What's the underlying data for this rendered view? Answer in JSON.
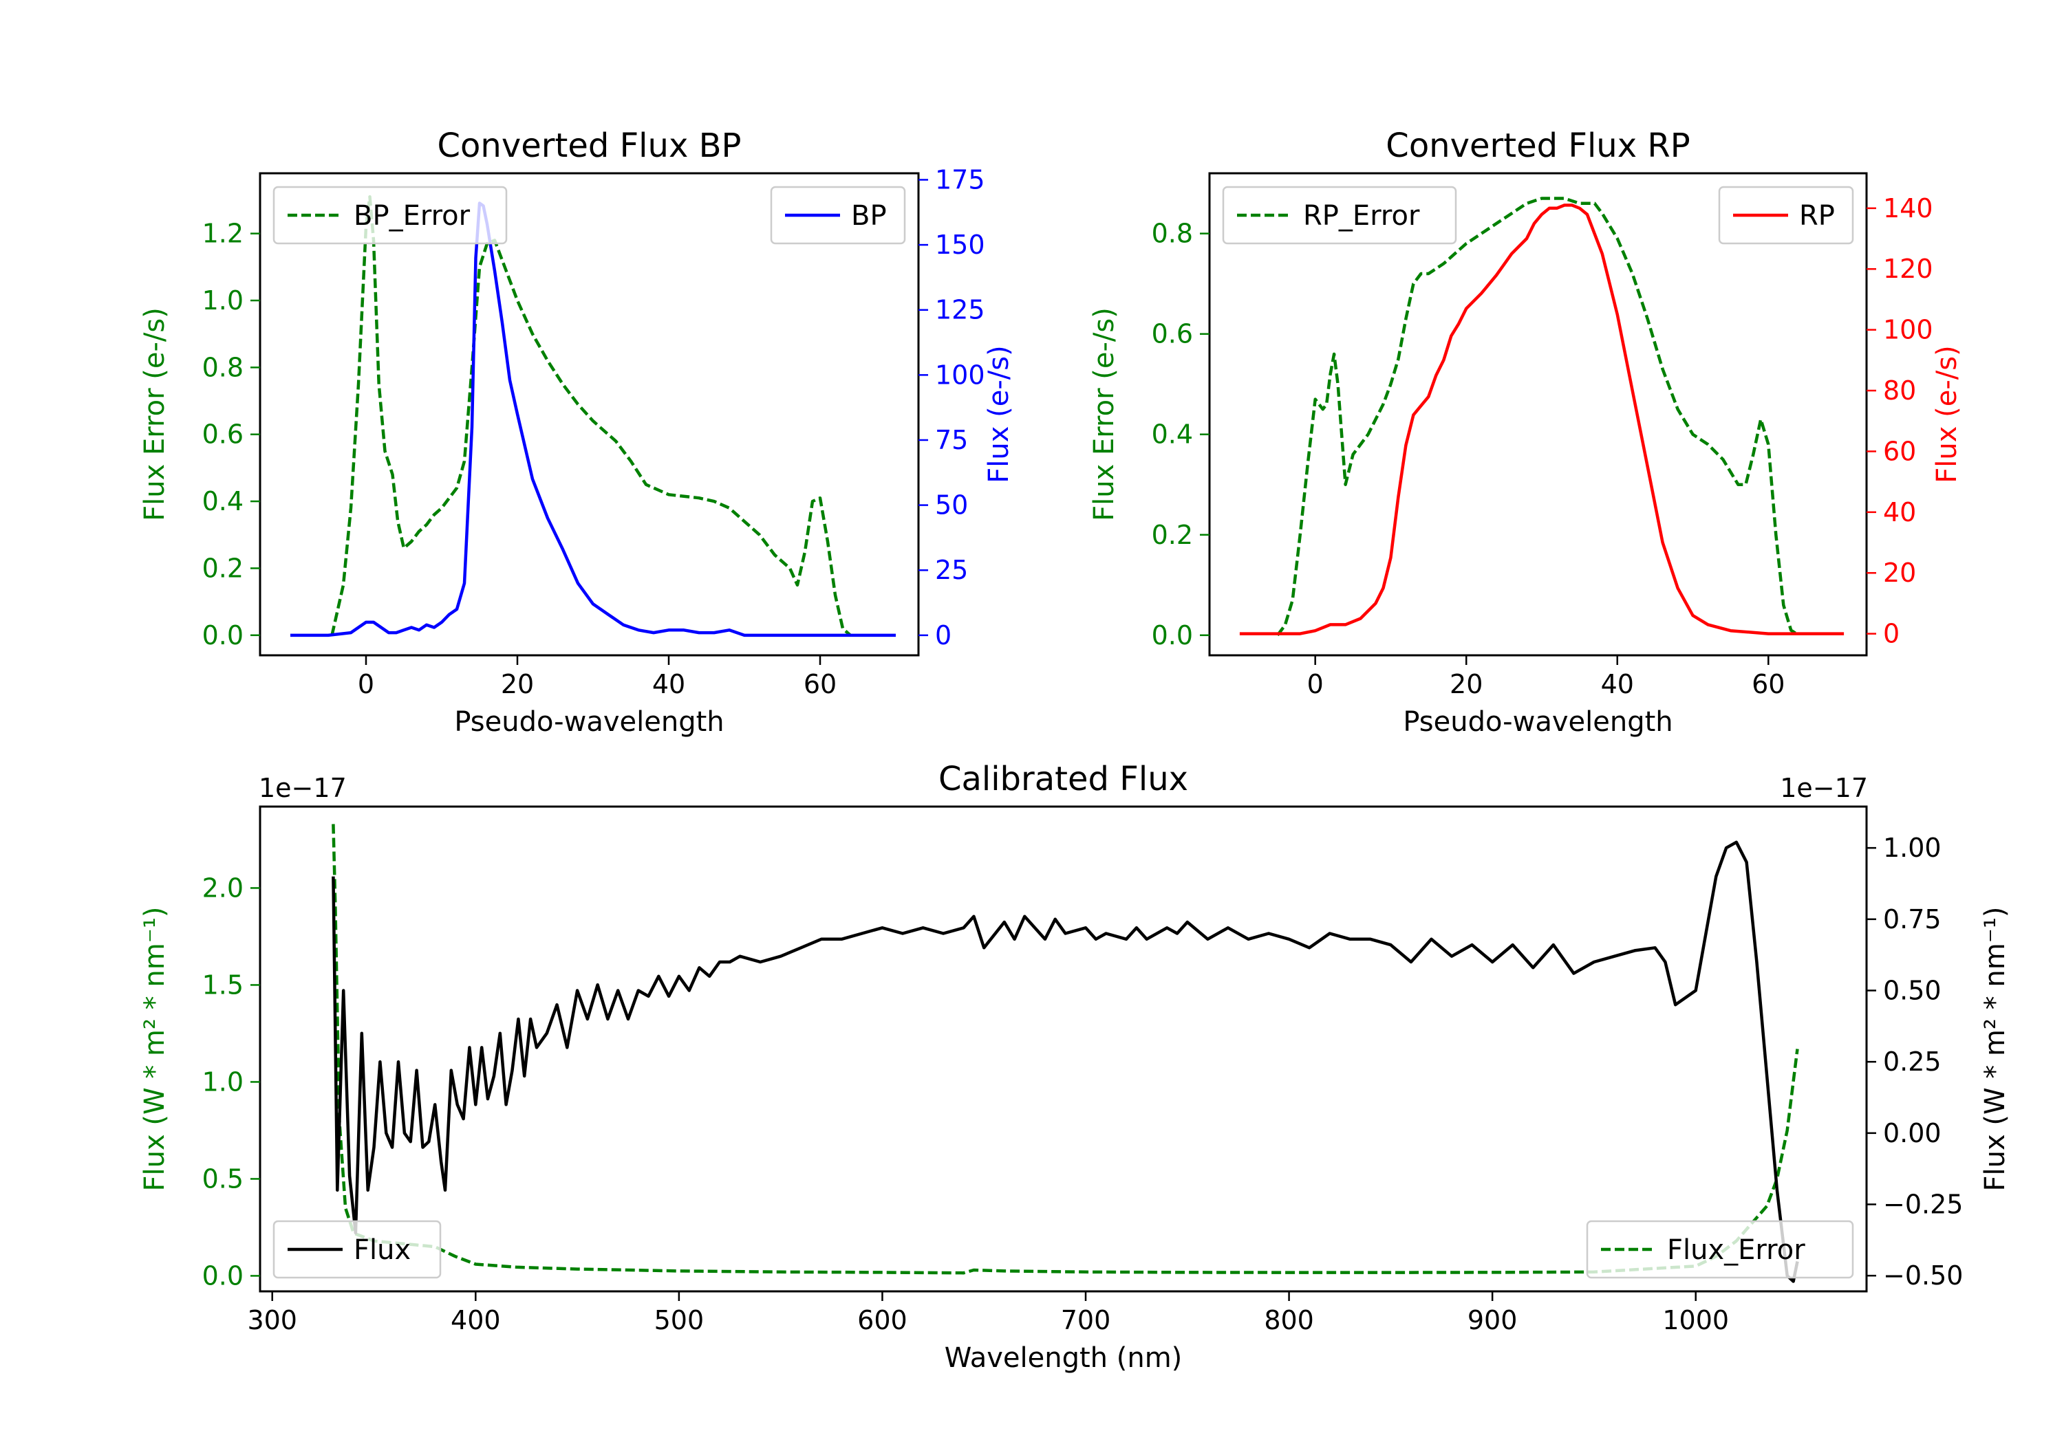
{
  "colors": {
    "green": "#008000",
    "blue": "#0000ff",
    "red": "#ff0000",
    "black": "#000000"
  },
  "chart_data": [
    {
      "type": "line",
      "id": "bp",
      "title": "Converted Flux BP",
      "xlabel": "Pseudo-wavelength",
      "ylabel_left": "Flux Error (e-/s)",
      "ylabel_right": "Flux (e-/s)",
      "xlim": [
        -14,
        73
      ],
      "ylim_left": [
        -0.06,
        1.38
      ],
      "ylim_right": [
        -7.7,
        177.5
      ],
      "xticks": [
        0,
        20,
        40,
        60
      ],
      "yticks_left": [
        0.0,
        0.2,
        0.4,
        0.6,
        0.8,
        1.0,
        1.2
      ],
      "yticks_right": [
        0,
        25,
        50,
        75,
        100,
        125,
        150,
        175
      ],
      "legend": [
        {
          "label": "BP_Error",
          "position": "top-left"
        },
        {
          "label": "BP",
          "position": "top-right"
        }
      ],
      "series": [
        {
          "name": "BP_Error",
          "axis": "left",
          "color": "green",
          "dash": true,
          "x": [
            -4.5,
            -3,
            -2,
            -1,
            0,
            0.5,
            1,
            1.7,
            2.5,
            3.5,
            4.2,
            5,
            6,
            7,
            8,
            9,
            10,
            11,
            12,
            13,
            14,
            15,
            16,
            17,
            18,
            19,
            20,
            22,
            24,
            26,
            28,
            30,
            31,
            33,
            35,
            37,
            40,
            44,
            46,
            48,
            50,
            52,
            54,
            56,
            57,
            58,
            59,
            60,
            61,
            62,
            63,
            64
          ],
          "y": [
            0.0,
            0.15,
            0.38,
            0.75,
            1.22,
            1.31,
            1.18,
            0.75,
            0.55,
            0.48,
            0.34,
            0.26,
            0.28,
            0.31,
            0.33,
            0.36,
            0.38,
            0.41,
            0.44,
            0.52,
            0.8,
            1.1,
            1.17,
            1.18,
            1.12,
            1.06,
            1.0,
            0.9,
            0.82,
            0.75,
            0.69,
            0.64,
            0.62,
            0.58,
            0.52,
            0.45,
            0.42,
            0.41,
            0.4,
            0.38,
            0.34,
            0.3,
            0.24,
            0.2,
            0.15,
            0.25,
            0.4,
            0.41,
            0.28,
            0.12,
            0.02,
            0.0
          ]
        },
        {
          "name": "BP",
          "axis": "right",
          "color": "blue",
          "dash": false,
          "x": [
            -10,
            -5,
            -2,
            0,
            1,
            2,
            3,
            4,
            5,
            6,
            7,
            8,
            9,
            10,
            11,
            12,
            13,
            14,
            14.5,
            15,
            15.5,
            16,
            17,
            18,
            19,
            20,
            22,
            24,
            26,
            28,
            30,
            32,
            34,
            36,
            38,
            40,
            42,
            44,
            46,
            48,
            50,
            55,
            60,
            65,
            70
          ],
          "y": [
            0,
            0,
            1,
            5,
            5,
            3,
            1,
            1,
            2,
            3,
            2,
            4,
            3,
            5,
            8,
            10,
            20,
            80,
            145,
            166,
            165,
            158,
            140,
            120,
            98,
            85,
            60,
            45,
            33,
            20,
            12,
            8,
            4,
            2,
            1,
            2,
            2,
            1,
            1,
            2,
            0,
            0,
            0,
            0,
            0
          ]
        }
      ]
    },
    {
      "type": "line",
      "id": "rp",
      "title": "Converted Flux RP",
      "xlabel": "Pseudo-wavelength",
      "ylabel_left": "Flux Error (e-/s)",
      "ylabel_right": "Flux (e-/s)",
      "xlim": [
        -14,
        73
      ],
      "ylim_left": [
        -0.04,
        0.92
      ],
      "ylim_right": [
        -7.1,
        151.5
      ],
      "xticks": [
        0,
        20,
        40,
        60
      ],
      "yticks_left": [
        0.0,
        0.2,
        0.4,
        0.6,
        0.8
      ],
      "yticks_right": [
        0,
        20,
        40,
        60,
        80,
        100,
        120,
        140
      ],
      "legend": [
        {
          "label": "RP_Error",
          "position": "top-left"
        },
        {
          "label": "RP",
          "position": "top-right"
        }
      ],
      "series": [
        {
          "name": "RP_Error",
          "axis": "left",
          "color": "green",
          "dash": true,
          "x": [
            -5,
            -4,
            -3,
            -2,
            -1,
            0,
            1,
            1.5,
            2,
            2.5,
            3,
            3.5,
            4,
            5,
            7,
            9,
            10,
            11,
            12,
            13,
            14,
            15,
            17,
            20,
            22,
            25,
            28,
            30,
            33,
            35,
            37,
            38,
            40,
            42,
            44,
            46,
            48,
            50,
            52,
            54,
            56,
            57,
            58,
            59,
            60,
            61,
            62,
            63,
            64
          ],
          "y": [
            0.0,
            0.02,
            0.07,
            0.2,
            0.34,
            0.47,
            0.45,
            0.46,
            0.52,
            0.56,
            0.5,
            0.4,
            0.3,
            0.36,
            0.4,
            0.46,
            0.5,
            0.55,
            0.63,
            0.7,
            0.72,
            0.72,
            0.74,
            0.78,
            0.8,
            0.83,
            0.86,
            0.87,
            0.87,
            0.86,
            0.86,
            0.84,
            0.79,
            0.72,
            0.63,
            0.53,
            0.45,
            0.4,
            0.38,
            0.35,
            0.3,
            0.3,
            0.36,
            0.43,
            0.38,
            0.2,
            0.06,
            0.01,
            0.0
          ]
        },
        {
          "name": "RP",
          "axis": "right",
          "color": "red",
          "dash": false,
          "x": [
            -10,
            -5,
            -2,
            0,
            2,
            4,
            6,
            8,
            9,
            10,
            11,
            12,
            13,
            14,
            15,
            16,
            17,
            18,
            19,
            20,
            22,
            24,
            26,
            28,
            29,
            30,
            31,
            32,
            33,
            34,
            35,
            36,
            38,
            40,
            42,
            44,
            46,
            48,
            50,
            52,
            55,
            60,
            65,
            70
          ],
          "y": [
            0,
            0,
            0,
            1,
            3,
            3,
            5,
            10,
            15,
            25,
            45,
            62,
            72,
            75,
            78,
            85,
            90,
            98,
            102,
            107,
            112,
            118,
            125,
            130,
            135,
            138,
            140,
            140,
            141,
            141,
            140,
            138,
            125,
            105,
            80,
            55,
            30,
            15,
            6,
            3,
            1,
            0,
            0,
            0
          ]
        }
      ]
    },
    {
      "type": "line",
      "id": "cal",
      "title": "Calibrated Flux",
      "xlabel": "Wavelength (nm)",
      "ylabel_left": "Flux (W * m² * nm⁻¹)",
      "ylabel_right": "Flux (W * m² * nm⁻¹)",
      "offset_left": "1e−17",
      "offset_right": "1e−17",
      "units_note": "values in units of 1e-17",
      "xlim": [
        294,
        1084
      ],
      "ylim_left": [
        -0.08,
        2.42
      ],
      "ylim_right": [
        -0.555,
        1.145
      ],
      "xticks": [
        300,
        400,
        500,
        600,
        700,
        800,
        900,
        1000
      ],
      "yticks_left": [
        0.0,
        0.5,
        1.0,
        1.5,
        2.0
      ],
      "yticks_right": [
        -0.5,
        -0.25,
        0.0,
        0.25,
        0.5,
        0.75,
        1.0
      ],
      "yticklabels_right": [
        "−0.50",
        "−0.25",
        "0.00",
        "0.25",
        "0.50",
        "0.75",
        "1.00"
      ],
      "legend": [
        {
          "label": "Flux",
          "position": "bottom-left"
        },
        {
          "label": "Flux_Error",
          "position": "bottom-right"
        }
      ],
      "series": [
        {
          "name": "Flux_Error",
          "axis": "left",
          "color": "green",
          "dash": true,
          "x": [
            330,
            331,
            333,
            336,
            340,
            345,
            350,
            360,
            370,
            380,
            390,
            400,
            420,
            450,
            500,
            550,
            600,
            620,
            640,
            645,
            660,
            700,
            750,
            800,
            850,
            900,
            950,
            1000,
            1010,
            1020,
            1030,
            1035,
            1040,
            1045,
            1050
          ],
          "y": [
            2.33,
            1.9,
            0.8,
            0.35,
            0.22,
            0.2,
            0.18,
            0.17,
            0.16,
            0.15,
            0.1,
            0.06,
            0.045,
            0.035,
            0.025,
            0.02,
            0.018,
            0.016,
            0.015,
            0.03,
            0.025,
            0.02,
            0.018,
            0.017,
            0.017,
            0.018,
            0.02,
            0.05,
            0.1,
            0.18,
            0.3,
            0.36,
            0.5,
            0.75,
            1.17
          ]
        },
        {
          "name": "Flux",
          "axis": "right",
          "color": "black",
          "dash": false,
          "x": [
            330,
            332,
            335,
            338,
            341,
            344,
            347,
            350,
            353,
            356,
            359,
            362,
            365,
            368,
            371,
            374,
            377,
            380,
            383,
            385,
            388,
            391,
            394,
            397,
            400,
            403,
            406,
            409,
            412,
            415,
            418,
            421,
            424,
            427,
            430,
            435,
            440,
            445,
            450,
            455,
            460,
            465,
            470,
            475,
            480,
            485,
            490,
            495,
            500,
            505,
            510,
            515,
            520,
            525,
            530,
            540,
            550,
            560,
            570,
            580,
            590,
            600,
            610,
            620,
            630,
            640,
            645,
            650,
            660,
            665,
            670,
            680,
            685,
            690,
            700,
            705,
            710,
            720,
            725,
            730,
            740,
            745,
            750,
            760,
            770,
            780,
            790,
            800,
            810,
            820,
            830,
            840,
            850,
            860,
            870,
            880,
            890,
            900,
            910,
            920,
            930,
            940,
            950,
            960,
            970,
            980,
            985,
            990,
            1000,
            1005,
            1010,
            1015,
            1020,
            1025,
            1030,
            1035,
            1040,
            1045,
            1048,
            1050
          ],
          "y": [
            0.9,
            -0.2,
            0.5,
            -0.15,
            -0.35,
            0.35,
            -0.2,
            -0.05,
            0.25,
            0.0,
            -0.05,
            0.25,
            0.0,
            -0.03,
            0.22,
            -0.05,
            -0.03,
            0.1,
            -0.1,
            -0.2,
            0.22,
            0.1,
            0.05,
            0.3,
            0.1,
            0.3,
            0.12,
            0.2,
            0.35,
            0.1,
            0.22,
            0.4,
            0.2,
            0.4,
            0.3,
            0.35,
            0.45,
            0.3,
            0.5,
            0.4,
            0.52,
            0.4,
            0.5,
            0.4,
            0.5,
            0.48,
            0.55,
            0.48,
            0.55,
            0.5,
            0.58,
            0.55,
            0.6,
            0.6,
            0.62,
            0.6,
            0.62,
            0.65,
            0.68,
            0.68,
            0.7,
            0.72,
            0.7,
            0.72,
            0.7,
            0.72,
            0.76,
            0.65,
            0.74,
            0.68,
            0.76,
            0.68,
            0.75,
            0.7,
            0.72,
            0.68,
            0.7,
            0.68,
            0.72,
            0.68,
            0.72,
            0.7,
            0.74,
            0.68,
            0.72,
            0.68,
            0.7,
            0.68,
            0.65,
            0.7,
            0.68,
            0.68,
            0.66,
            0.6,
            0.68,
            0.62,
            0.66,
            0.6,
            0.66,
            0.58,
            0.66,
            0.56,
            0.6,
            0.62,
            0.64,
            0.65,
            0.6,
            0.45,
            0.5,
            0.7,
            0.9,
            1.0,
            1.02,
            0.95,
            0.6,
            0.2,
            -0.2,
            -0.5,
            -0.52,
            -0.45
          ]
        }
      ]
    }
  ]
}
